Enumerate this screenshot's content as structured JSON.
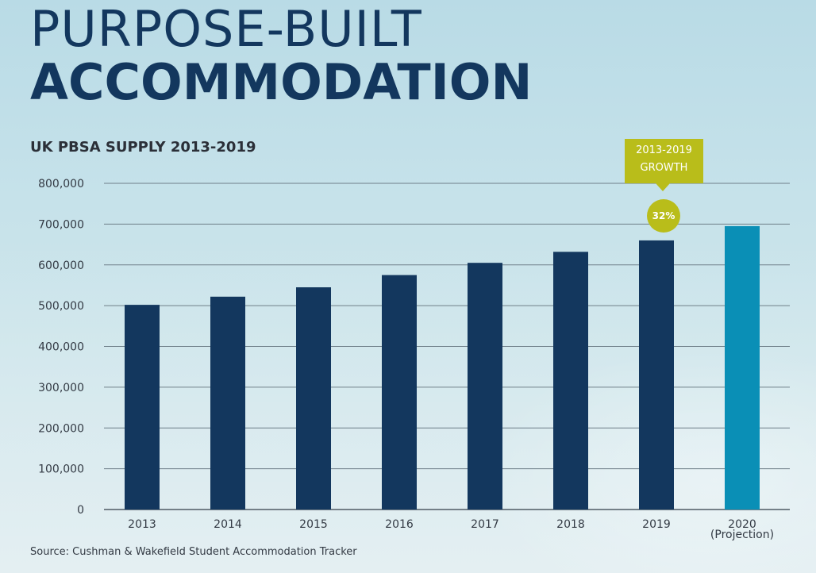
{
  "header": {
    "title_line1": "PURPOSE-BUILT",
    "title_line2": "ACCOMMODATION"
  },
  "annotation": {
    "growth_label_line1": "2013-2019",
    "growth_label_line2": "GROWTH",
    "growth_value": "32%"
  },
  "source": "Source: Cushman & Wakefield Student Accommodation Tracker",
  "colors": {
    "title": "#13375e",
    "bar_actual": "#13375e",
    "bar_projection": "#0a8fb6",
    "annotation": "#b9bd1a",
    "gridline": "#6f7f89"
  },
  "chart_data": {
    "type": "bar",
    "title": "UK PBSA SUPPLY 2013-2019",
    "xlabel": "",
    "ylabel": "",
    "ylim": [
      0,
      800000
    ],
    "yticks": [
      "0",
      "100,000",
      "200,000",
      "300,000",
      "400,000",
      "500,000",
      "600,000",
      "700,000",
      "800,000"
    ],
    "ytick_values": [
      0,
      100000,
      200000,
      300000,
      400000,
      500000,
      600000,
      700000,
      800000
    ],
    "grid": true,
    "categories": [
      {
        "line1": "2013",
        "line2": ""
      },
      {
        "line1": "2014",
        "line2": ""
      },
      {
        "line1": "2015",
        "line2": ""
      },
      {
        "line1": "2016",
        "line2": ""
      },
      {
        "line1": "2017",
        "line2": ""
      },
      {
        "line1": "2018",
        "line2": ""
      },
      {
        "line1": "2019",
        "line2": ""
      },
      {
        "line1": "2020",
        "line2": "(Projection)"
      }
    ],
    "values": [
      502000,
      522000,
      545000,
      575000,
      605000,
      632000,
      660000,
      695000
    ],
    "projection": [
      false,
      false,
      false,
      false,
      false,
      false,
      false,
      true
    ]
  }
}
